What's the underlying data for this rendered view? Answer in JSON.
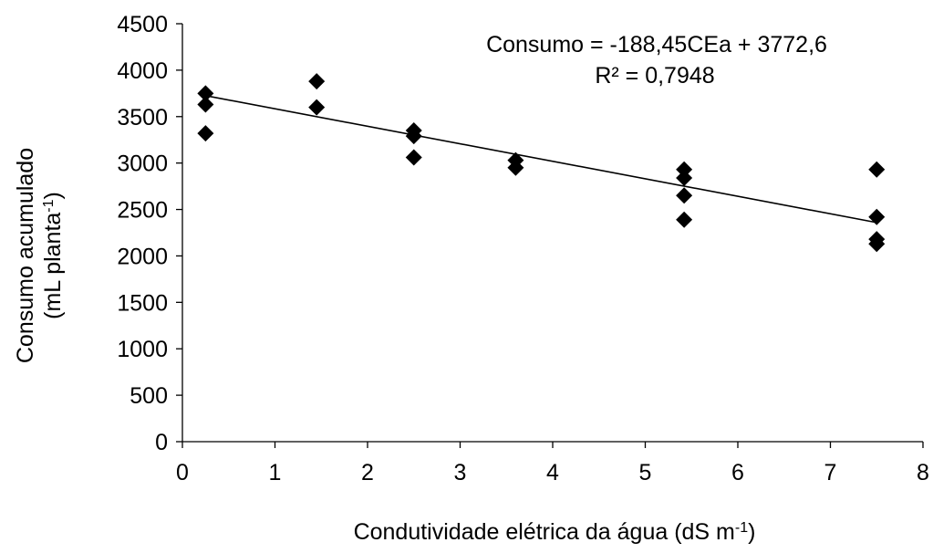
{
  "chart_data": {
    "type": "scatter",
    "xlabel": "Condutividade elétrica da água (dS m",
    "xlabel_sup": "-1",
    "xlabel_end": ")",
    "ylabel_line1": "Consumo acumulado",
    "ylabel_line2": "(mL planta",
    "ylabel_line2_sup": "-1",
    "ylabel_line2_end": ")",
    "xlim": [
      0,
      8
    ],
    "ylim": [
      0,
      4500
    ],
    "x_ticks": [
      "0",
      "1",
      "2",
      "3",
      "4",
      "5",
      "6",
      "7",
      "8"
    ],
    "y_ticks": [
      "0",
      "500",
      "1000",
      "1500",
      "2000",
      "2500",
      "3000",
      "3500",
      "4000",
      "4500"
    ],
    "grid": false,
    "marker": "diamond",
    "marker_color": "#000000",
    "points": [
      {
        "x": 0.25,
        "y": 3750
      },
      {
        "x": 0.25,
        "y": 3630
      },
      {
        "x": 0.25,
        "y": 3320
      },
      {
        "x": 1.45,
        "y": 3880
      },
      {
        "x": 1.45,
        "y": 3600
      },
      {
        "x": 2.5,
        "y": 3350
      },
      {
        "x": 2.5,
        "y": 3290
      },
      {
        "x": 2.5,
        "y": 3060
      },
      {
        "x": 3.6,
        "y": 3030
      },
      {
        "x": 3.6,
        "y": 2950
      },
      {
        "x": 5.42,
        "y": 2930
      },
      {
        "x": 5.42,
        "y": 2840
      },
      {
        "x": 5.42,
        "y": 2650
      },
      {
        "x": 5.42,
        "y": 2390
      },
      {
        "x": 7.5,
        "y": 2930
      },
      {
        "x": 7.5,
        "y": 2420
      },
      {
        "x": 7.5,
        "y": 2180
      },
      {
        "x": 7.5,
        "y": 2130
      }
    ],
    "trendline": {
      "slope": -188.45,
      "intercept": 3772.6,
      "x_range": [
        0.25,
        7.5
      ],
      "equation": "Consumo = -188,45CEa + 3772,6",
      "r_squared": "R² = 0,7948"
    }
  }
}
